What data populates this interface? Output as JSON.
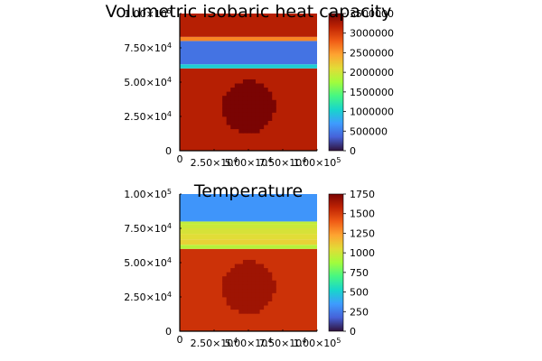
{
  "chart_data": [
    {
      "type": "heatmap",
      "title": "Volumetric isobaric heat capacity",
      "xlabel": "",
      "ylabel": "",
      "xlim": [
        0,
        100000
      ],
      "ylim": [
        0,
        100000
      ],
      "x_ticks": [
        {
          "value": 0,
          "mant": "0",
          "exp": ""
        },
        {
          "value": 25000,
          "mant": "2.50×10",
          "exp": "4"
        },
        {
          "value": 50000,
          "mant": "5.00×10",
          "exp": "4"
        },
        {
          "value": 75000,
          "mant": "7.50×10",
          "exp": "4"
        },
        {
          "value": 100000,
          "mant": "1.00×10",
          "exp": "5"
        }
      ],
      "y_ticks": [
        {
          "value": 0,
          "mant": "0",
          "exp": ""
        },
        {
          "value": 25000,
          "mant": "2.50×10",
          "exp": "4"
        },
        {
          "value": 50000,
          "mant": "5.00×10",
          "exp": "4"
        },
        {
          "value": 75000,
          "mant": "7.50×10",
          "exp": "4"
        },
        {
          "value": 100000,
          "mant": "1.00×10",
          "exp": "5"
        }
      ],
      "colorbar": {
        "min": 0,
        "max": 3500000,
        "ticks": [
          {
            "value": 0,
            "label": "0"
          },
          {
            "value": 500000,
            "label": "500000"
          },
          {
            "value": 1000000,
            "label": "1000000"
          },
          {
            "value": 1500000,
            "label": "1500000"
          },
          {
            "value": 2000000,
            "label": "2000000"
          },
          {
            "value": 2500000,
            "label": "2500000"
          },
          {
            "value": 3000000,
            "label": "3000000"
          },
          {
            "value": 3500000,
            "label": "3500000"
          }
        ]
      },
      "layers": [
        {
          "y_from": 0,
          "y_to": 60000,
          "value": 3200000
        },
        {
          "y_from": 60000,
          "y_to": 63000,
          "value": 1000000
        },
        {
          "y_from": 63000,
          "y_to": 80000,
          "value": 450000
        },
        {
          "y_from": 80000,
          "y_to": 83000,
          "value": 2600000
        },
        {
          "y_from": 83000,
          "y_to": 100000,
          "value": 3200000
        }
      ],
      "inclusion": {
        "cx": 50000,
        "cy": 32000,
        "r": 19000,
        "value": 3500000
      }
    },
    {
      "type": "heatmap",
      "title": "Temperature",
      "xlabel": "",
      "ylabel": "",
      "xlim": [
        0,
        100000
      ],
      "ylim": [
        0,
        100000
      ],
      "x_ticks": [
        {
          "value": 0,
          "mant": "0",
          "exp": ""
        },
        {
          "value": 25000,
          "mant": "2.50×10",
          "exp": "4"
        },
        {
          "value": 50000,
          "mant": "5.00×10",
          "exp": "4"
        },
        {
          "value": 75000,
          "mant": "7.50×10",
          "exp": "4"
        },
        {
          "value": 100000,
          "mant": "1.00×10",
          "exp": "5"
        }
      ],
      "y_ticks": [
        {
          "value": 0,
          "mant": "0",
          "exp": ""
        },
        {
          "value": 25000,
          "mant": "2.50×10",
          "exp": "4"
        },
        {
          "value": 50000,
          "mant": "5.00×10",
          "exp": "4"
        },
        {
          "value": 75000,
          "mant": "7.50×10",
          "exp": "4"
        },
        {
          "value": 100000,
          "mant": "1.00×10",
          "exp": "5"
        }
      ],
      "colorbar": {
        "min": 0,
        "max": 1750,
        "ticks": [
          {
            "value": 0,
            "label": "0"
          },
          {
            "value": 250,
            "label": "250"
          },
          {
            "value": 500,
            "label": "500"
          },
          {
            "value": 750,
            "label": "750"
          },
          {
            "value": 1000,
            "label": "1000"
          },
          {
            "value": 1250,
            "label": "1250"
          },
          {
            "value": 1500,
            "label": "1500"
          },
          {
            "value": 1750,
            "label": "1750"
          }
        ]
      },
      "layers": [
        {
          "y_from": 0,
          "y_to": 60000,
          "value": 1530
        },
        {
          "y_from": 60000,
          "y_to": 63000,
          "value": 930
        },
        {
          "y_from": 63000,
          "y_to": 67000,
          "value": 1080
        },
        {
          "y_from": 67000,
          "y_to": 71000,
          "value": 1050
        },
        {
          "y_from": 71000,
          "y_to": 75000,
          "value": 1020
        },
        {
          "y_from": 75000,
          "y_to": 78000,
          "value": 990
        },
        {
          "y_from": 78000,
          "y_to": 80000,
          "value": 960
        },
        {
          "y_from": 80000,
          "y_to": 100000,
          "value": 330
        }
      ],
      "inclusion": {
        "cx": 50000,
        "cy": 32000,
        "r": 19000,
        "value": 1660
      }
    }
  ]
}
